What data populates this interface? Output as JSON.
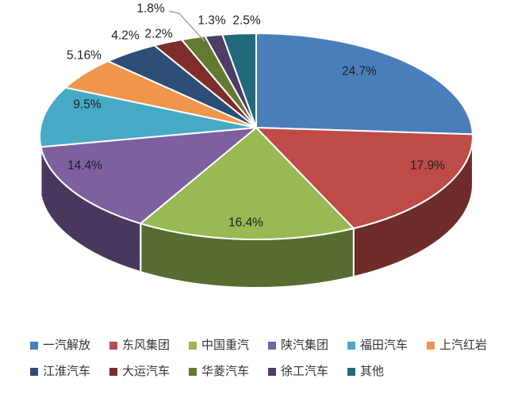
{
  "chart_data": {
    "type": "pie",
    "style": "3d",
    "title": "",
    "legend_position": "bottom",
    "background": "#ffffff",
    "label_color": "#1f1f1f",
    "leader_line_color": "#a6a6a6",
    "series": [
      {
        "label": "一汽解放",
        "value": 24.7,
        "display": "24.7%",
        "color": "#4A7EBB"
      },
      {
        "label": "东风集团",
        "value": 17.9,
        "display": "17.9%",
        "color": "#BE4B48"
      },
      {
        "label": "中国重汽",
        "value": 16.4,
        "display": "16.4%",
        "color": "#98B954"
      },
      {
        "label": "陕汽集团",
        "value": 14.4,
        "display": "14.4%",
        "color": "#7D60A0"
      },
      {
        "label": "福田汽车",
        "value": 9.5,
        "display": "9.5%",
        "color": "#46AAC5"
      },
      {
        "label": "上汽红岩",
        "value": 5.16,
        "display": "5.16%",
        "color": "#F0954C"
      },
      {
        "label": "江淮汽车",
        "value": 4.2,
        "display": "4.2%",
        "color": "#2C4D75"
      },
      {
        "label": "大运汽车",
        "value": 2.2,
        "display": "2.2%",
        "color": "#7E2D2A"
      },
      {
        "label": "华菱汽车",
        "value": 1.8,
        "display": "1.8%",
        "color": "#637A31"
      },
      {
        "label": "徐工汽车",
        "value": 1.3,
        "display": "1.3%",
        "color": "#4F3D63"
      },
      {
        "label": "其他",
        "value": 2.5,
        "display": "2.5%",
        "color": "#22697D"
      }
    ]
  }
}
